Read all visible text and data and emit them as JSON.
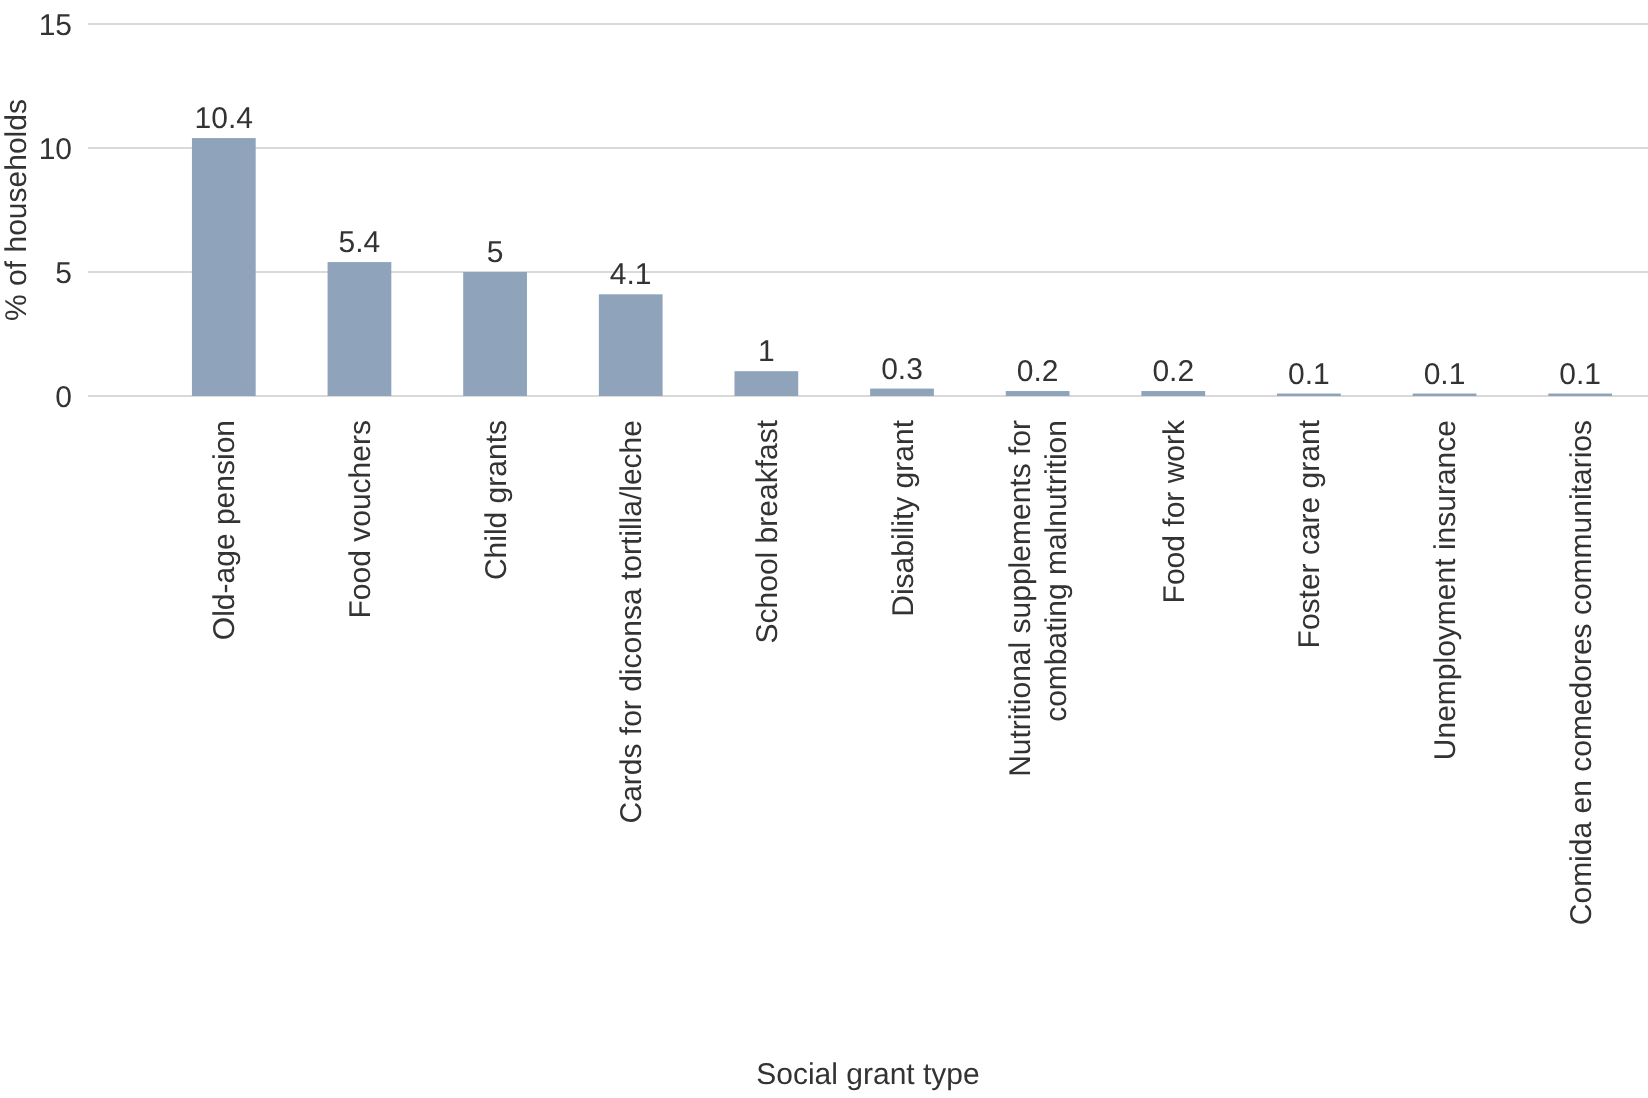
{
  "chart_data": {
    "type": "bar",
    "xlabel": "Social grant type",
    "ylabel": "% of households",
    "categories": [
      "Old-age pension",
      "Food vouchers",
      "Child grants",
      "Cards for diconsa tortilla/leche",
      "School breakfast",
      "Disability grant",
      "Nutritional supplements for\ncombating malnutrition",
      "Food for work",
      "Foster care grant",
      "Unemployment insurance",
      "Comida en comedores communitarios"
    ],
    "values": [
      10.4,
      5.4,
      5,
      4.1,
      1,
      0.3,
      0.2,
      0.2,
      0.1,
      0.1,
      0.1
    ],
    "color": "#8fa3bb",
    "ylim": [
      0,
      15
    ],
    "yticks": [
      0,
      5,
      10,
      15
    ],
    "grid": "y",
    "data_labels": true
  }
}
